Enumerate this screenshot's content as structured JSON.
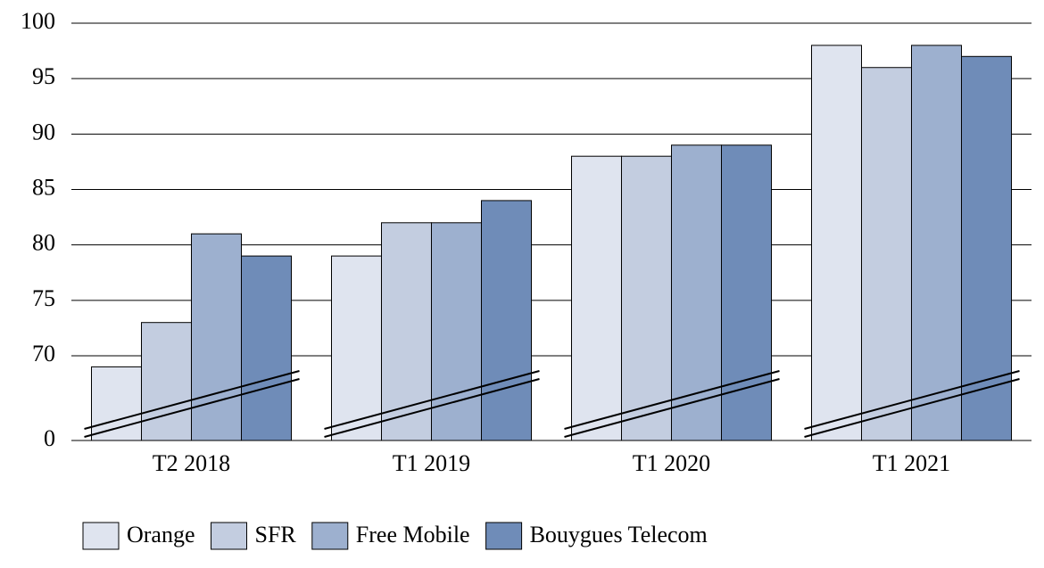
{
  "chart_data": {
    "type": "bar",
    "categories": [
      "T2 2018",
      "T1 2019",
      "T1 2020",
      "T1 2021"
    ],
    "series": [
      {
        "name": "Orange",
        "color": "#dfe4ef",
        "values": [
          69,
          79,
          88,
          98
        ]
      },
      {
        "name": "SFR",
        "color": "#c3cde0",
        "values": [
          73,
          82,
          88,
          96
        ]
      },
      {
        "name": "Free Mobile",
        "color": "#9db0cf",
        "values": [
          81,
          82,
          89,
          98
        ]
      },
      {
        "name": "Bouygues Telecom",
        "color": "#6f8cb8",
        "values": [
          79,
          84,
          89,
          97
        ]
      }
    ],
    "ylim": [
      0,
      100
    ],
    "yticks": [
      0,
      70,
      75,
      80,
      85,
      90,
      95,
      100
    ],
    "axis_break": [
      0,
      70
    ],
    "grid": true,
    "legend": "bottom"
  }
}
